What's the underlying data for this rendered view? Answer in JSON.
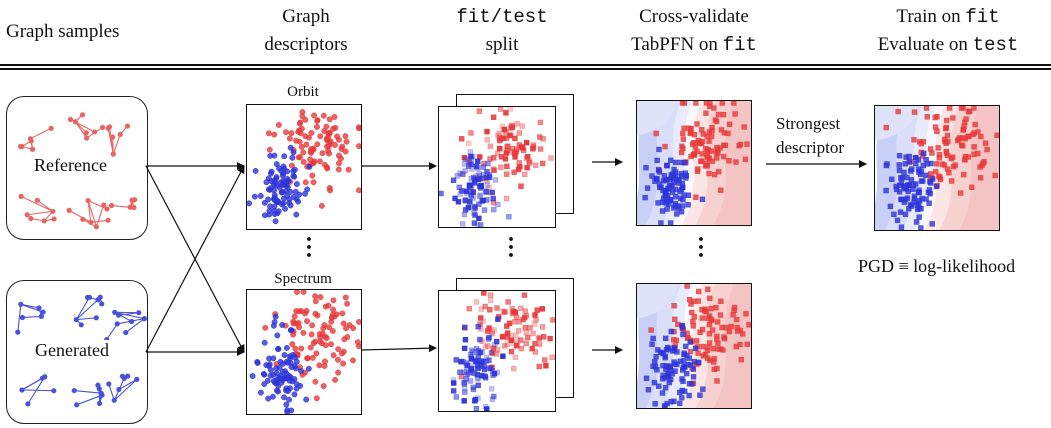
{
  "header": {
    "col1": "Graph samples",
    "col2_line1": "Graph",
    "col2_line2": "descriptors",
    "col3_line1": "fit/test",
    "col3_line2": "split",
    "col4_line1": "Cross-validate",
    "col4_line2_a": "TabPFN on ",
    "col4_line2_b": "fit",
    "col5_line1_a": "Train on ",
    "col5_line1_b": "fit",
    "col5_line2_a": "Evaluate on ",
    "col5_line2_b": "test"
  },
  "samples": {
    "reference_label": "Reference",
    "generated_label": "Generated"
  },
  "descriptors": {
    "top_title": "Orbit",
    "bottom_title": "Spectrum"
  },
  "arrow_label": {
    "line1": "Strongest",
    "line2": "descriptor"
  },
  "result": "PGD ≡ log-likelihood",
  "colors": {
    "reference": "#e8393a",
    "generated": "#2e35d8",
    "edge_ref": "#e86464",
    "edge_gen": "#4a52d8"
  }
}
